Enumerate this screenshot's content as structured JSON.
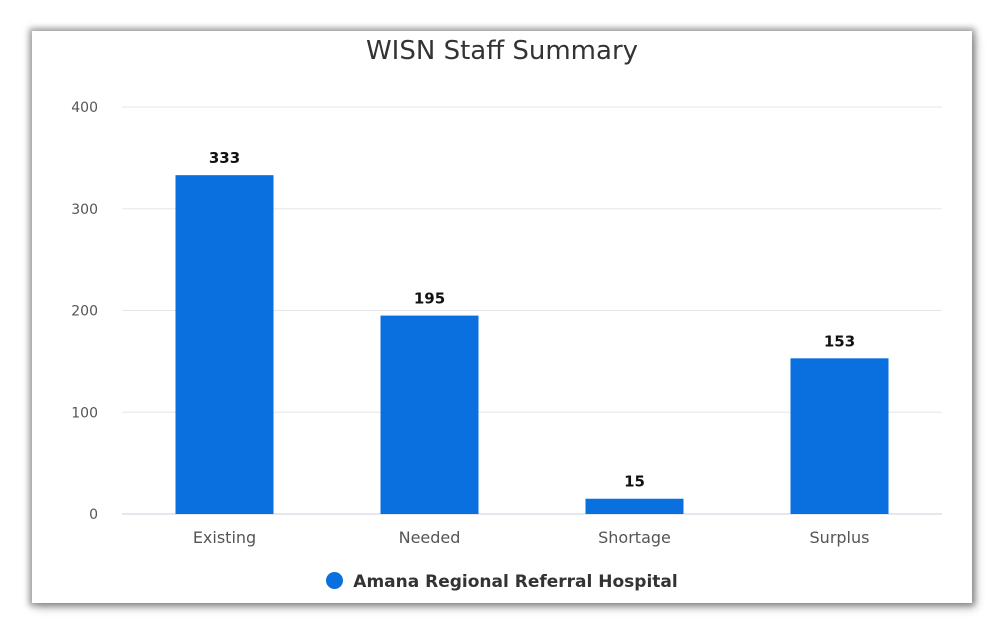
{
  "chart_data": {
    "type": "bar",
    "title": "WISN Staff Summary",
    "categories": [
      "Existing",
      "Needed",
      "Shortage",
      "Surplus"
    ],
    "series": [
      {
        "name": "Amana Regional Referral Hospital",
        "values": [
          333,
          195,
          15,
          153
        ],
        "color": "#0a6fdf"
      }
    ],
    "data_labels": [
      "333",
      "195",
      "15",
      "153"
    ],
    "y_ticks": [
      "0",
      "100",
      "200",
      "300",
      "400"
    ],
    "ylim": [
      0,
      400
    ],
    "grid": true,
    "legend": "bottom-center"
  }
}
